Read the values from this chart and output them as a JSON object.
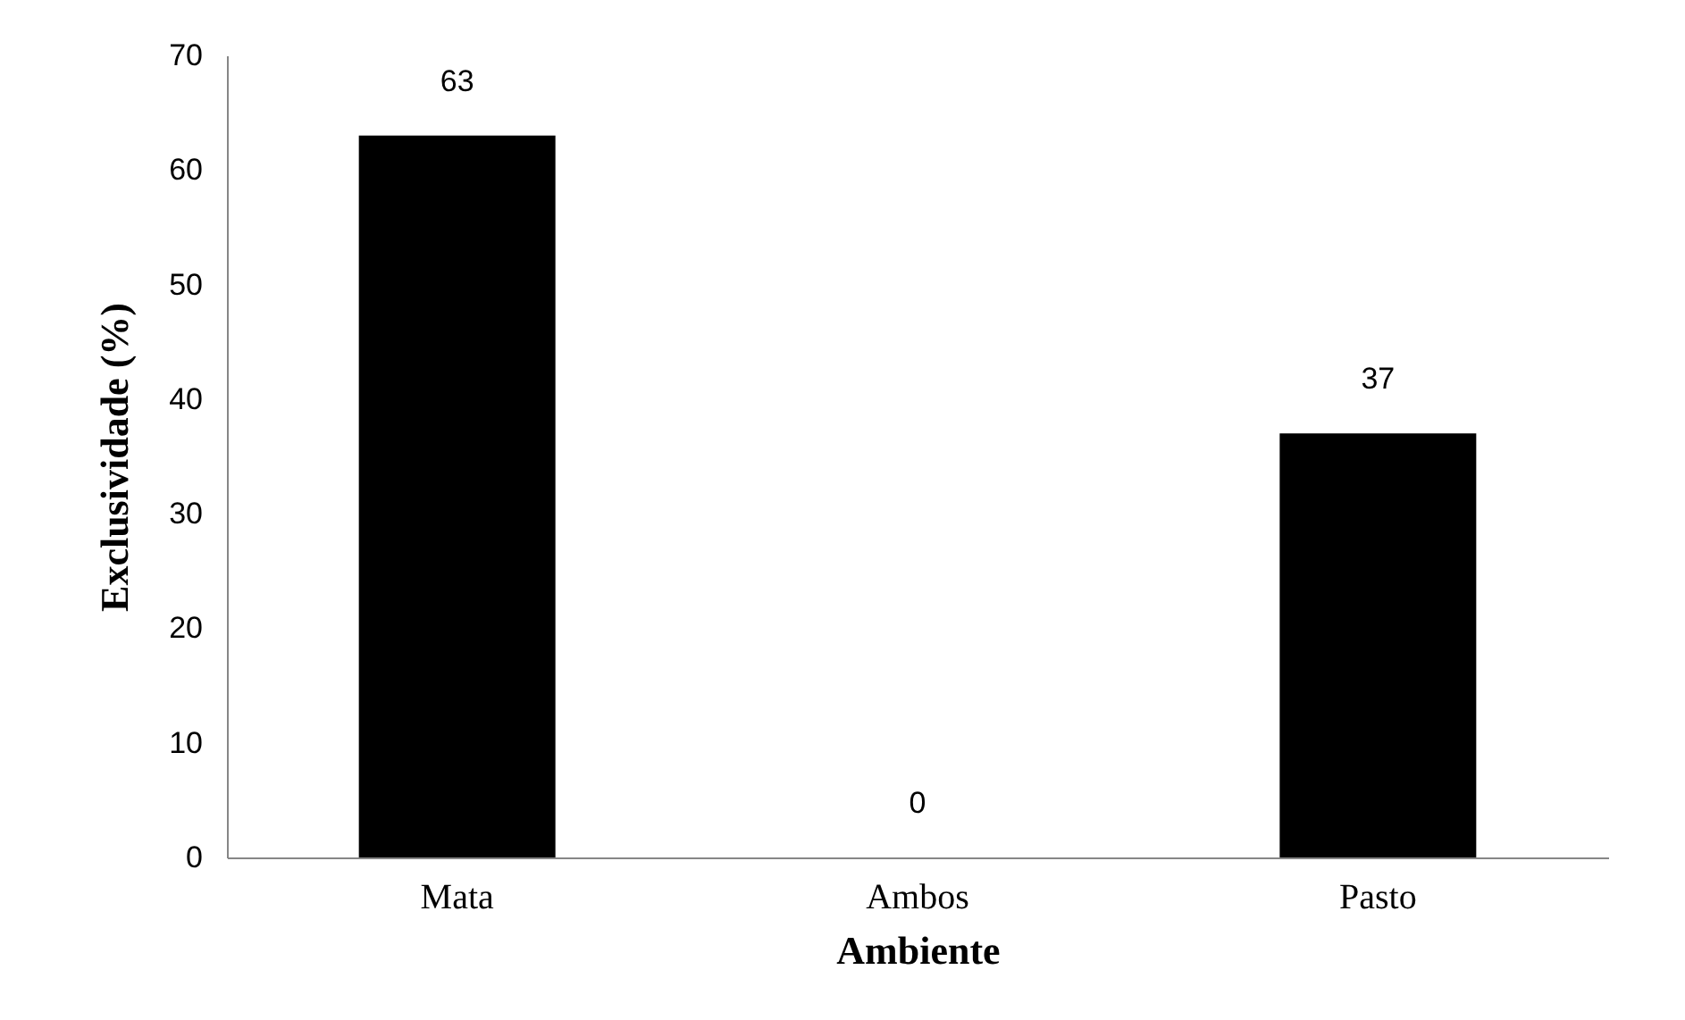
{
  "chart_data": {
    "type": "bar",
    "xlabel": "Ambiente",
    "ylabel": "Exclusividade (%)",
    "categories": [
      "Mata",
      "Ambos",
      "Pasto"
    ],
    "values": [
      63,
      0,
      37
    ],
    "color": "#000000",
    "ylim": [
      0,
      70
    ],
    "yticks": [
      0,
      10,
      20,
      30,
      40,
      50,
      60,
      70
    ],
    "data_labels": true,
    "grid": false
  }
}
